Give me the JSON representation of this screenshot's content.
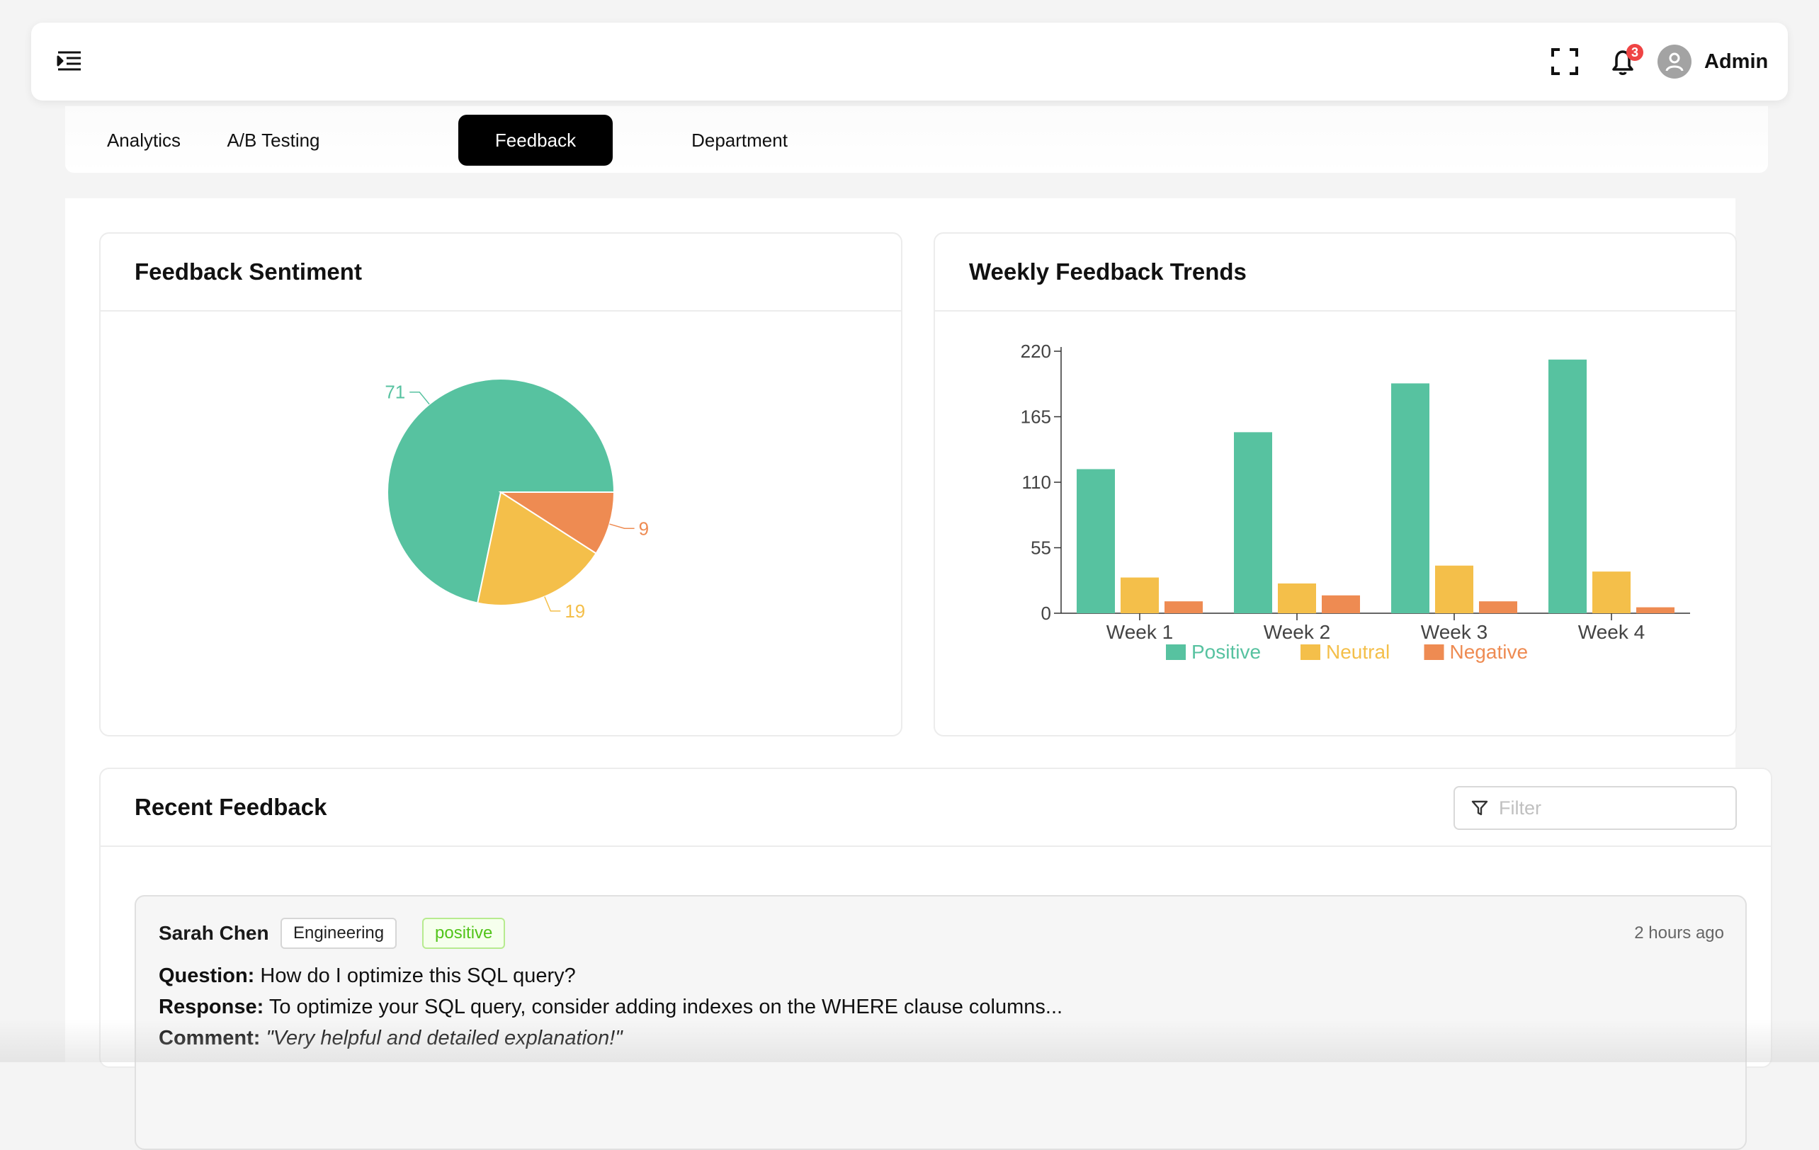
{
  "header": {
    "user_name": "Admin",
    "notification_count": "3",
    "icons": {
      "menu": "menu-indent-icon",
      "fullscreen": "fullscreen-icon",
      "notifications": "bell-icon",
      "avatar": "user-icon"
    }
  },
  "tabs": [
    {
      "label": "Analytics",
      "active": false
    },
    {
      "label": "A/B Testing",
      "active": false
    },
    {
      "label": "Feedback",
      "active": true
    },
    {
      "label": "Department",
      "active": false
    }
  ],
  "sentiment_card": {
    "title": "Feedback Sentiment"
  },
  "trends_card": {
    "title": "Weekly Feedback Trends"
  },
  "recent": {
    "title": "Recent Feedback",
    "filter_placeholder": "Filter",
    "items": [
      {
        "name": "Sarah Chen",
        "department": "Engineering",
        "sentiment": "positive",
        "time": "2 hours ago",
        "question_label": "Question:",
        "question": "How do I optimize this SQL query?",
        "response_label": "Response:",
        "response": "To optimize your SQL query, consider adding indexes on the WHERE clause columns...",
        "comment_label": "Comment:",
        "comment": "\"Very helpful and detailed explanation!\""
      }
    ]
  },
  "colors": {
    "positive": "#57c2a0",
    "neutral": "#f4bf4a",
    "negative": "#ee8b52",
    "active_tab": "#000000"
  },
  "chart_data": [
    {
      "type": "pie",
      "categories": [
        "Positive",
        "Neutral",
        "Negative"
      ],
      "values": [
        71,
        19,
        9
      ],
      "colors": [
        "#57c2a0",
        "#f4bf4a",
        "#ee8b52"
      ]
    },
    {
      "type": "bar",
      "categories": [
        "Week 1",
        "Week 2",
        "Week 3",
        "Week 4"
      ],
      "series": [
        {
          "name": "Positive",
          "values": [
            121,
            152,
            193,
            213
          ],
          "color": "#57c2a0"
        },
        {
          "name": "Neutral",
          "values": [
            30,
            25,
            40,
            35
          ],
          "color": "#f4bf4a"
        },
        {
          "name": "Negative",
          "values": [
            10,
            15,
            10,
            5
          ],
          "color": "#ee8b52"
        }
      ],
      "yticks": [
        0,
        55,
        110,
        165,
        220
      ],
      "ylim": [
        0,
        220
      ],
      "legend": "bottom"
    }
  ]
}
